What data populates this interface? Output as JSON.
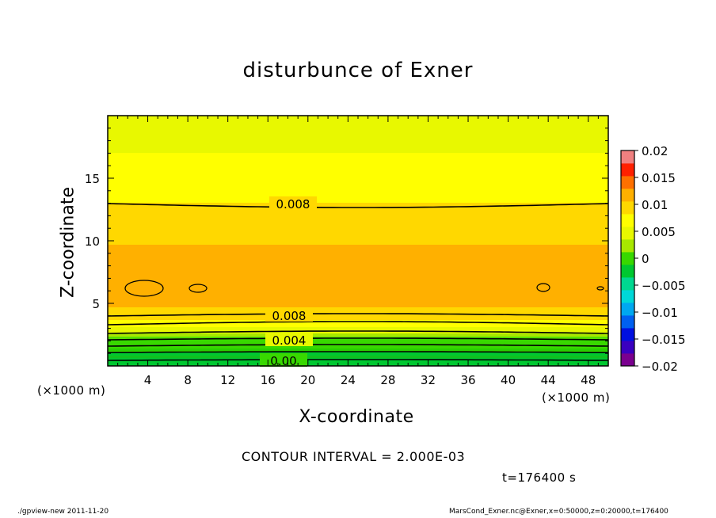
{
  "chart_data": {
    "type": "contour",
    "title": "disturbunce of Exner",
    "xlabel": "X-coordinate",
    "ylabel": "Z-coordinate",
    "x_unit_label": "(×1000 m)",
    "xlim": [
      0,
      50
    ],
    "ylim": [
      0,
      20
    ],
    "x_ticks": [
      4,
      8,
      12,
      16,
      20,
      24,
      28,
      32,
      36,
      40,
      44,
      48
    ],
    "y_ticks": [
      5,
      10,
      15
    ],
    "colorbar": {
      "ticks": [
        "0.02",
        "0.015",
        "0.01",
        "0.005",
        "0",
        "−0.005",
        "−0.01",
        "−0.015",
        "−0.02"
      ],
      "range": [
        -0.02,
        0.02
      ],
      "step": 0.0025,
      "colors": [
        "#7a008f",
        "#3a00c0",
        "#0010e0",
        "#0060f0",
        "#00a8f0",
        "#00d8d8",
        "#00d890",
        "#00c830",
        "#38d800",
        "#a8e800",
        "#e8f800",
        "#ffff00",
        "#ffd800",
        "#ffb000",
        "#ff7000",
        "#ff2000",
        "#f08080"
      ]
    },
    "contour_labels": [
      "0.008",
      "0.008",
      "0.004",
      "0.00"
    ],
    "contour_interval_text": "CONTOUR INTERVAL = 2.000E-03",
    "time_text": "t=176400 s"
  },
  "footer": {
    "left": "./gpview-new  2011-11-20",
    "right": "MarsCond_Exner.nc@Exner,x=0:50000,z=0:20000,t=176400"
  }
}
